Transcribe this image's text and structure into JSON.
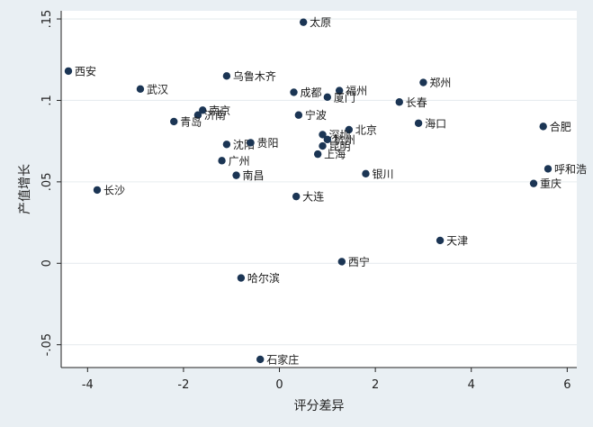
{
  "chart_data": {
    "type": "scatter",
    "title": "",
    "xlabel": "评分差异",
    "ylabel": "产值增长",
    "xlim": [
      -4.55,
      6.2
    ],
    "ylim": [
      -0.064,
      0.155
    ],
    "xticks": [
      -4,
      -2,
      0,
      2,
      4,
      6
    ],
    "xtick_labels": [
      "-4",
      "-2",
      "0",
      "2",
      "4",
      "6"
    ],
    "yticks": [
      -0.05,
      0,
      0.05,
      0.1,
      0.15
    ],
    "ytick_labels": [
      "-.05",
      "0",
      ".05",
      ".1",
      ".15"
    ],
    "grid": true,
    "colors": {
      "marker": "#1b3554",
      "grid": "#e7ecef",
      "background": "#e9eff3"
    },
    "points": [
      {
        "label": "太原",
        "x": 0.5,
        "y": 0.148
      },
      {
        "label": "西安",
        "x": -4.4,
        "y": 0.118
      },
      {
        "label": "乌鲁木齐",
        "x": -1.1,
        "y": 0.115
      },
      {
        "label": "郑州",
        "x": 3.0,
        "y": 0.111
      },
      {
        "label": "武汉",
        "x": -2.9,
        "y": 0.107
      },
      {
        "label": "成都",
        "x": 0.3,
        "y": 0.105
      },
      {
        "label": "福州",
        "x": 1.25,
        "y": 0.106
      },
      {
        "label": "厦门",
        "x": 1.0,
        "y": 0.102
      },
      {
        "label": "长春",
        "x": 2.5,
        "y": 0.099
      },
      {
        "label": "南京",
        "x": -1.6,
        "y": 0.094
      },
      {
        "label": "济南",
        "x": -1.7,
        "y": 0.091
      },
      {
        "label": "宁波",
        "x": 0.4,
        "y": 0.091
      },
      {
        "label": "青岛",
        "x": -2.2,
        "y": 0.087
      },
      {
        "label": "海口",
        "x": 2.9,
        "y": 0.086
      },
      {
        "label": "合肥",
        "x": 5.5,
        "y": 0.084
      },
      {
        "label": "北京",
        "x": 1.45,
        "y": 0.082
      },
      {
        "label": "深圳",
        "x": 0.9,
        "y": 0.079
      },
      {
        "label": "杭州",
        "x": 1.0,
        "y": 0.076
      },
      {
        "label": "沈阳",
        "x": -1.1,
        "y": 0.073
      },
      {
        "label": "贵阳",
        "x": -0.6,
        "y": 0.074
      },
      {
        "label": "昆明",
        "x": 0.9,
        "y": 0.072
      },
      {
        "label": "上海",
        "x": 0.8,
        "y": 0.067
      },
      {
        "label": "广州",
        "x": -1.2,
        "y": 0.063
      },
      {
        "label": "呼和浩",
        "x": 5.6,
        "y": 0.058
      },
      {
        "label": "银川",
        "x": 1.8,
        "y": 0.055
      },
      {
        "label": "南昌",
        "x": -0.9,
        "y": 0.054
      },
      {
        "label": "重庆",
        "x": 5.3,
        "y": 0.049
      },
      {
        "label": "长沙",
        "x": -3.8,
        "y": 0.045
      },
      {
        "label": "大连",
        "x": 0.35,
        "y": 0.041
      },
      {
        "label": "天津",
        "x": 3.35,
        "y": 0.014
      },
      {
        "label": "西宁",
        "x": 1.3,
        "y": 0.001
      },
      {
        "label": "哈尔滨",
        "x": -0.8,
        "y": -0.009
      },
      {
        "label": "石家庄",
        "x": -0.4,
        "y": -0.059
      }
    ]
  }
}
